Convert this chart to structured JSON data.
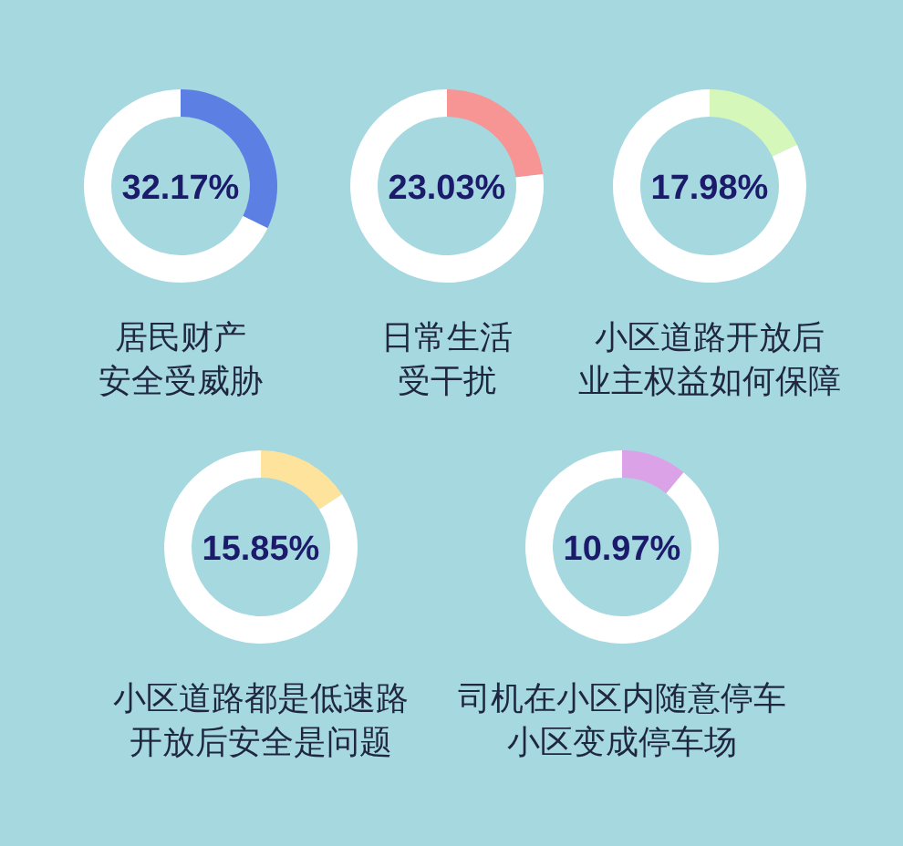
{
  "chart_data": [
    {
      "type": "donut",
      "title": "居民财产安全受威胁",
      "categories": [
        null,
        null
      ],
      "values": [
        32.17,
        67.83
      ],
      "colors": [
        "#5b7fe3",
        "#ffffff"
      ],
      "annotations": [
        "32.17%"
      ]
    },
    {
      "type": "donut",
      "title": "日常生活受干扰",
      "categories": [
        null,
        null
      ],
      "values": [
        23.03,
        76.97
      ],
      "colors": [
        "#f79494",
        "#ffffff"
      ],
      "annotations": [
        "23.03%"
      ]
    },
    {
      "type": "donut",
      "title": "小区道路开放后业主权益如何保障",
      "categories": [
        null,
        null
      ],
      "values": [
        17.98,
        82.02
      ],
      "colors": [
        "#d5f7b9",
        "#ffffff"
      ],
      "annotations": [
        "17.98%"
      ]
    },
    {
      "type": "donut",
      "title": "小区道路都是低速路开放后安全是问题",
      "categories": [
        null,
        null
      ],
      "values": [
        15.85,
        84.15
      ],
      "colors": [
        "#fde39c",
        "#ffffff"
      ],
      "annotations": [
        "15.85%"
      ]
    },
    {
      "type": "donut",
      "title": "司机在小区内随意停车小区变成停车场",
      "categories": [
        null,
        null
      ],
      "values": [
        10.97,
        89.03
      ],
      "colors": [
        "#dba2e8",
        "#ffffff"
      ],
      "annotations": [
        "10.97%"
      ]
    }
  ]
}
